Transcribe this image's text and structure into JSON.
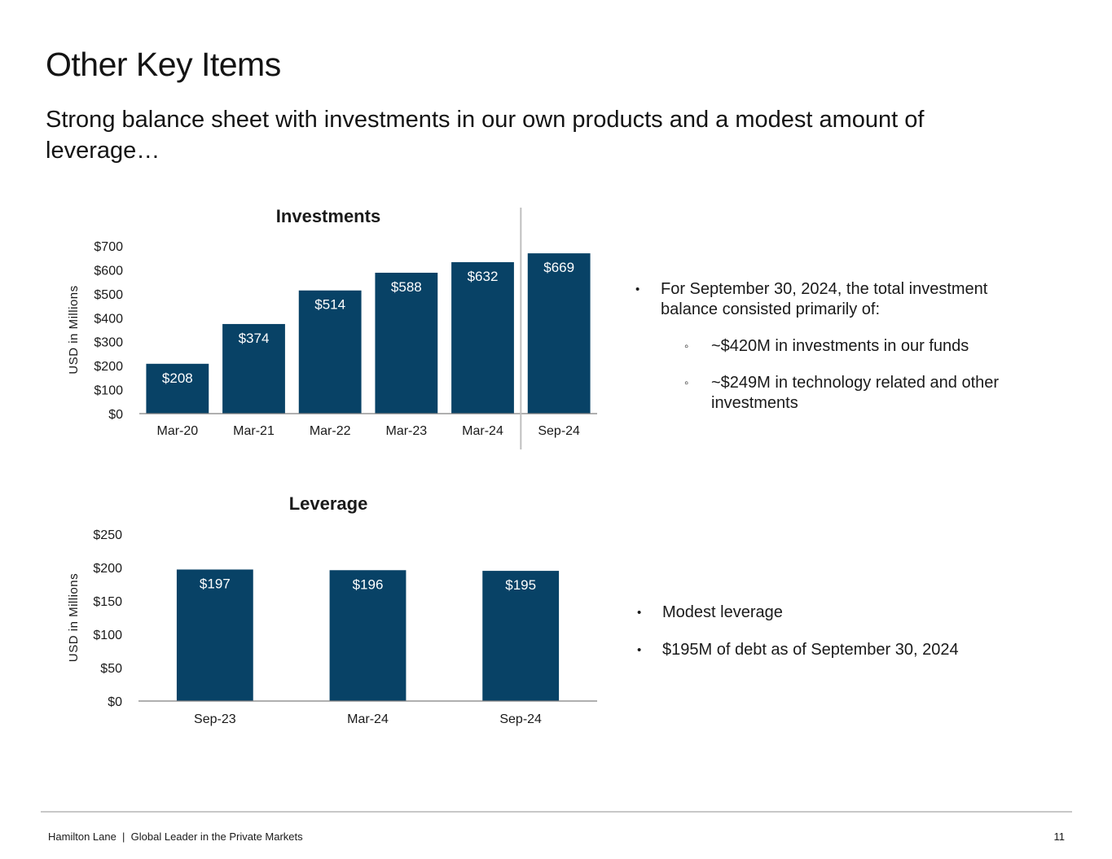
{
  "slide": {
    "title": "Other Key Items",
    "subtitle": "Strong balance sheet with investments in our own products and a modest amount of leverage…"
  },
  "chart_data": [
    {
      "type": "bar",
      "title": "Investments",
      "ylabel": "USD in Millions",
      "xlabel": "",
      "categories": [
        "Mar-20",
        "Mar-21",
        "Mar-22",
        "Mar-23",
        "Mar-24",
        "Sep-24"
      ],
      "values": [
        208,
        374,
        514,
        588,
        632,
        669
      ],
      "data_labels": [
        "$208",
        "$374",
        "$514",
        "$588",
        "$632",
        "$669"
      ],
      "ylim": [
        0,
        700
      ],
      "yticks": [
        0,
        100,
        200,
        300,
        400,
        500,
        600,
        700
      ],
      "ytick_labels": [
        "$0",
        "$100",
        "$200",
        "$300",
        "$400",
        "$500",
        "$600",
        "$700"
      ],
      "grid": false,
      "legend": "none",
      "bar_color": "#084266",
      "divider_after_category": "Mar-24"
    },
    {
      "type": "bar",
      "title": "Leverage",
      "ylabel": "USD in Millions",
      "xlabel": "",
      "categories": [
        "Sep-23",
        "Mar-24",
        "Sep-24"
      ],
      "values": [
        197,
        196,
        195
      ],
      "data_labels": [
        "$197",
        "$196",
        "$195"
      ],
      "ylim": [
        0,
        250
      ],
      "yticks": [
        0,
        50,
        100,
        150,
        200,
        250
      ],
      "ytick_labels": [
        "$0",
        "$50",
        "$100",
        "$150",
        "$200",
        "$250"
      ],
      "grid": false,
      "legend": "none",
      "bar_color": "#084266"
    }
  ],
  "investments_notes": {
    "lead": "For September 30, 2024, the total investment balance consisted primarily of:",
    "items": [
      "~$420M in investments in our funds",
      "~$249M in technology related and other investments"
    ]
  },
  "leverage_notes": {
    "items": [
      "Modest leverage",
      "$195M of debt as of September 30, 2024"
    ]
  },
  "footer": {
    "left": "Hamilton Lane  |  Global Leader in the Private Markets",
    "page_number": "11"
  },
  "colors": {
    "bar": "#084266",
    "axis": "#7f7f7f",
    "divider": "#bfbfbf",
    "footer_rule": "#c8c8c8"
  }
}
